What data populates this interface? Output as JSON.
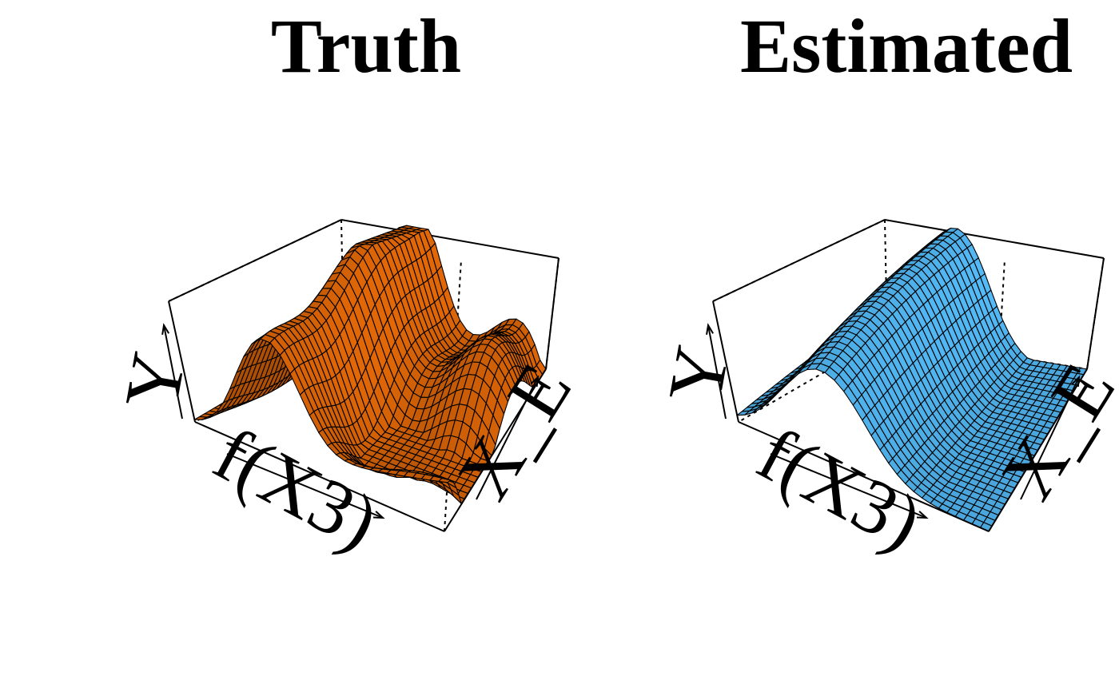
{
  "figure": {
    "panels": [
      {
        "title": "Truth",
        "surface_color": "#c45a06",
        "mesh_color": "#000000"
      },
      {
        "title": "Estimated",
        "surface_color": "#4aa6dc",
        "mesh_color": "#000000"
      }
    ]
  },
  "chart_data": [
    {
      "type": "surface",
      "title": "Truth",
      "axes": {
        "x_label": "f(X3)",
        "y_label": "X_E",
        "z_label": "Y"
      },
      "ticks": false,
      "grid_resolution": [
        30,
        30
      ],
      "surface": "z = 0.92*exp(-((x-0.30)/0.16)^2)*(0.7+0.3*y) + 0.55*y^2*exp(-((x-0.62)/0.30)^2) - 0.25*sin(4*pi*x)*y + 0.18*cos(3*pi*y)*x",
      "surface_color": "#c45a06"
    },
    {
      "type": "surface",
      "title": "Estimated",
      "axes": {
        "x_label": "f(X3)",
        "y_label": "X_E",
        "z_label": "Y"
      },
      "ticks": false,
      "grid_resolution": [
        30,
        30
      ],
      "surface": "z = 0.95*exp(-((x-0.33)/0.22)^2)*(0.55+0.45*y) + 0.2*y*(1-x) - 0.15*x*y",
      "surface_color": "#4aa6dc"
    }
  ]
}
